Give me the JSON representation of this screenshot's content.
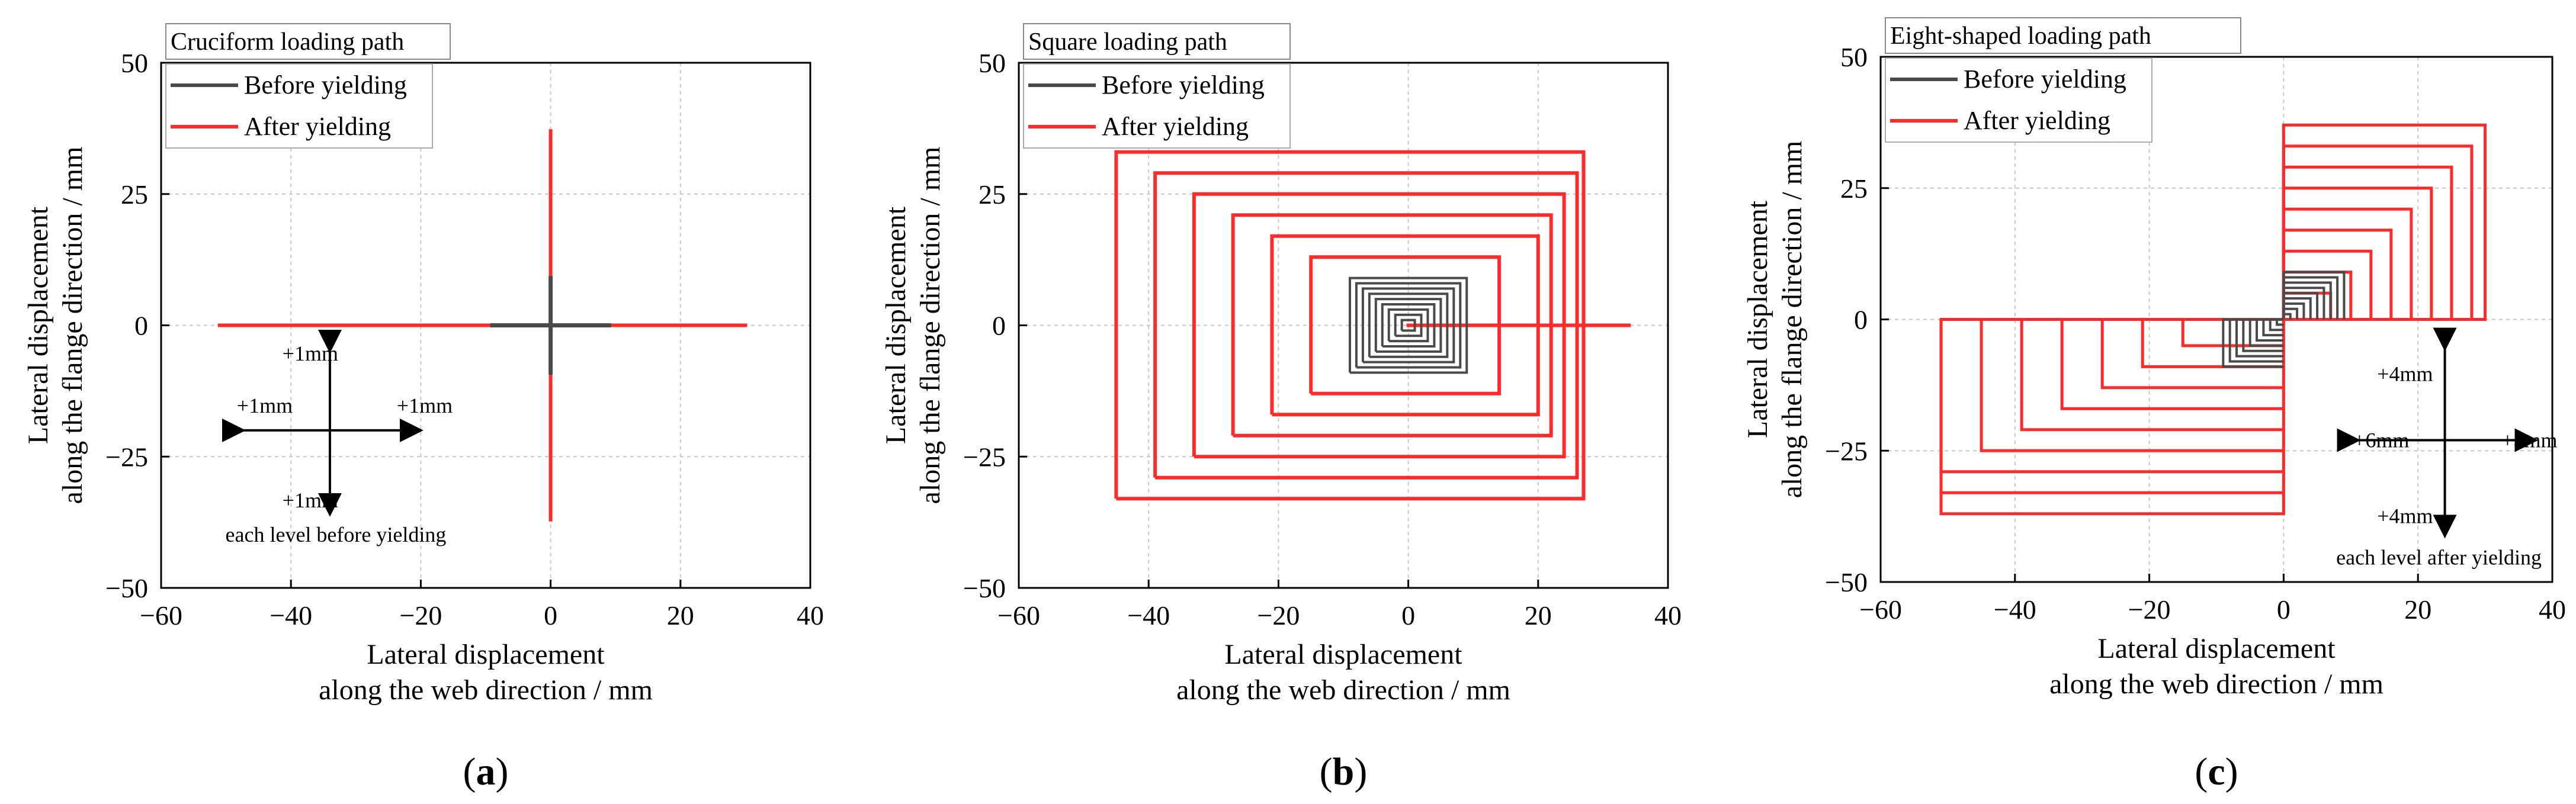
{
  "chart_data": [
    {
      "type": "line",
      "panel": "a",
      "caption": {
        "open": "(",
        "letter": "a",
        "close": ")"
      },
      "legend_title": "Cruciform loading path",
      "xlabel": [
        "Lateral displacement",
        "along the web direction / mm"
      ],
      "ylabel": [
        "Lateral displacement",
        "along the flange direction / mm"
      ],
      "xlim": [
        -60,
        40
      ],
      "ylim": [
        -50,
        50
      ],
      "xticks": [
        -60,
        -40,
        -20,
        0,
        20,
        40
      ],
      "yticks": [
        -50,
        -25,
        0,
        25,
        50
      ],
      "grid": true,
      "legend_position": "top-left",
      "series": [
        {
          "name": "Before yielding",
          "color": "#4a4a4a",
          "path": "cross",
          "levels": [
            1,
            2,
            3,
            4,
            5,
            6,
            7,
            8,
            9
          ]
        },
        {
          "name": "After yielding",
          "color": "#ff2a2a",
          "segments": [
            [
              -51,
              0,
              30,
              0
            ],
            [
              0,
              -37,
              0,
              37
            ]
          ]
        }
      ],
      "annotations": {
        "up": "+1mm",
        "left": "+1mm",
        "right": "+1mm",
        "down": "+1mm",
        "note": "each level before yielding"
      }
    },
    {
      "type": "line",
      "panel": "b",
      "caption": {
        "open": "(",
        "letter": "b",
        "close": ")"
      },
      "legend_title": "Square loading path",
      "xlabel": [
        "Lateral displacement",
        "along the web direction / mm"
      ],
      "ylabel": [
        "Lateral displacement",
        "along the flange direction / mm"
      ],
      "xlim": [
        -60,
        40
      ],
      "ylim": [
        -50,
        50
      ],
      "xticks": [
        -60,
        -40,
        -20,
        0,
        20,
        40
      ],
      "yticks": [
        -50,
        -25,
        0,
        25,
        50
      ],
      "grid": true,
      "legend_position": "top-left",
      "series": [
        {
          "name": "Before yielding",
          "color": "#4a4a4a",
          "path": "square-spiral",
          "levels": [
            1,
            2,
            3,
            4,
            5,
            6,
            7,
            8,
            9
          ]
        },
        {
          "name": "After yielding",
          "color": "#ff2a2a",
          "path": "square-spiral",
          "rectangles": [
            [
              -15,
              14,
              -13,
              13
            ],
            [
              -21,
              20,
              -17,
              17
            ],
            [
              -27,
              22,
              -21,
              21
            ],
            [
              -33,
              24,
              -25,
              25
            ],
            [
              -39,
              26,
              -29,
              29
            ],
            [
              -45,
              27,
              -33,
              33
            ]
          ],
          "segments": [
            [
              0,
              0,
              34,
              0
            ]
          ]
        }
      ]
    },
    {
      "type": "line",
      "panel": "c",
      "caption": {
        "open": "(",
        "letter": "c",
        "close": ")"
      },
      "legend_title": "Eight-shaped loading path",
      "xlabel": [
        "Lateral displacement",
        "along the web direction / mm"
      ],
      "ylabel": [
        "Lateral displacement",
        "along the flange direction / mm"
      ],
      "xlim": [
        -60,
        40
      ],
      "ylim": [
        -50,
        50
      ],
      "xticks": [
        -60,
        -40,
        -20,
        0,
        20,
        40
      ],
      "yticks": [
        -50,
        -25,
        0,
        25,
        50
      ],
      "grid": true,
      "legend_position": "top-left",
      "series": [
        {
          "name": "Before yielding",
          "color": "#4a4a4a",
          "path": "eight-shaped",
          "levels": [
            1,
            2,
            3,
            4,
            5,
            6,
            7,
            8,
            9
          ]
        },
        {
          "name": "After yielding",
          "color": "#ff2a2a",
          "path": "eight-shaped",
          "quadrant1_boxes": [
            [
              7,
              5
            ],
            [
              10,
              9
            ],
            [
              13,
              13
            ],
            [
              16,
              17
            ],
            [
              19,
              21
            ],
            [
              22,
              25
            ],
            [
              25,
              29
            ],
            [
              28,
              33
            ],
            [
              30,
              37
            ]
          ],
          "quadrant3_boxes": [
            [
              -15,
              -5
            ],
            [
              -21,
              -9
            ],
            [
              -27,
              -13
            ],
            [
              -33,
              -17
            ],
            [
              -39,
              -21
            ],
            [
              -45,
              -25
            ],
            [
              -51,
              -29
            ],
            [
              -51,
              -33
            ],
            [
              -51,
              -37
            ]
          ]
        }
      ],
      "annotations": {
        "up": "+4mm",
        "left": "+6mm",
        "right": "+3mm",
        "down": "+4mm",
        "note": "each level after yielding"
      }
    }
  ]
}
